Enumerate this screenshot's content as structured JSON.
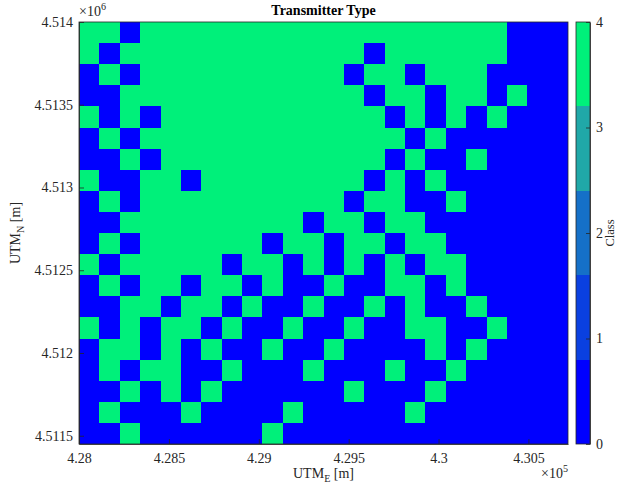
{
  "chart_data": {
    "type": "heatmap",
    "title": "Transmitter Type",
    "xlabel": {
      "base": "UTM",
      "sub": "E",
      "unit": " [m]"
    },
    "ylabel": {
      "base": "UTM",
      "sub": "N",
      "unit": " [m]"
    },
    "x_exponent": {
      "base": "×10",
      "sup": "5"
    },
    "y_exponent": {
      "base": "×10",
      "sup": "6"
    },
    "xlim": [
      4.28,
      4.3072
    ],
    "ylim": [
      4.51145,
      4.514
    ],
    "xticks": [
      4.28,
      4.285,
      4.29,
      4.295,
      4.3,
      4.305
    ],
    "yticks": [
      4.5115,
      4.512,
      4.5125,
      4.513,
      4.5135,
      4.514
    ],
    "colorbar": {
      "label": "Class",
      "range": [
        0,
        4
      ],
      "ticks": [
        0,
        1,
        2,
        3,
        4
      ],
      "colors": [
        "#0000ff",
        "#0a40e0",
        "#1570c8",
        "#20a8a8",
        "#00f07a"
      ]
    },
    "cells": [
      [
        4,
        4,
        0,
        4,
        4,
        4,
        4,
        4,
        4,
        4,
        4,
        4,
        4,
        4,
        4,
        4,
        4,
        4,
        4,
        4,
        4,
        0,
        0,
        0
      ],
      [
        4,
        0,
        4,
        4,
        4,
        4,
        4,
        4,
        4,
        4,
        4,
        4,
        4,
        4,
        0,
        4,
        4,
        4,
        4,
        4,
        4,
        0,
        0,
        0
      ],
      [
        0,
        4,
        0,
        4,
        4,
        4,
        4,
        4,
        4,
        4,
        4,
        4,
        4,
        0,
        4,
        4,
        0,
        4,
        4,
        4,
        0,
        0,
        0,
        0
      ],
      [
        0,
        0,
        4,
        4,
        4,
        4,
        4,
        4,
        4,
        4,
        4,
        4,
        4,
        4,
        0,
        4,
        4,
        0,
        4,
        4,
        0,
        4,
        0,
        0
      ],
      [
        4,
        0,
        4,
        0,
        4,
        4,
        4,
        4,
        4,
        4,
        4,
        4,
        4,
        4,
        4,
        0,
        4,
        0,
        4,
        0,
        4,
        0,
        0,
        0
      ],
      [
        0,
        4,
        0,
        4,
        4,
        4,
        4,
        4,
        4,
        4,
        4,
        4,
        4,
        4,
        4,
        4,
        0,
        4,
        0,
        0,
        0,
        0,
        0,
        0
      ],
      [
        0,
        0,
        4,
        0,
        4,
        4,
        4,
        4,
        4,
        4,
        4,
        4,
        4,
        4,
        4,
        0,
        4,
        0,
        0,
        4,
        0,
        0,
        0,
        0
      ],
      [
        4,
        0,
        0,
        4,
        4,
        0,
        4,
        4,
        4,
        4,
        4,
        4,
        4,
        4,
        0,
        4,
        0,
        4,
        0,
        0,
        0,
        0,
        0,
        0
      ],
      [
        0,
        4,
        0,
        4,
        4,
        4,
        4,
        4,
        4,
        4,
        4,
        4,
        4,
        0,
        4,
        4,
        0,
        0,
        4,
        0,
        0,
        0,
        0,
        0
      ],
      [
        0,
        0,
        4,
        4,
        4,
        4,
        4,
        4,
        4,
        4,
        4,
        0,
        4,
        4,
        0,
        4,
        4,
        0,
        0,
        0,
        0,
        0,
        0,
        0
      ],
      [
        0,
        4,
        0,
        4,
        4,
        4,
        4,
        4,
        4,
        0,
        4,
        4,
        0,
        4,
        4,
        0,
        4,
        4,
        0,
        0,
        0,
        0,
        0,
        0
      ],
      [
        4,
        0,
        4,
        4,
        4,
        4,
        4,
        0,
        4,
        4,
        0,
        4,
        0,
        4,
        0,
        4,
        0,
        4,
        4,
        0,
        0,
        0,
        0,
        0
      ],
      [
        0,
        4,
        0,
        4,
        4,
        0,
        4,
        4,
        0,
        4,
        0,
        0,
        4,
        0,
        0,
        4,
        4,
        0,
        4,
        0,
        0,
        0,
        0,
        0
      ],
      [
        0,
        0,
        4,
        4,
        0,
        4,
        4,
        0,
        4,
        0,
        0,
        4,
        0,
        0,
        4,
        0,
        4,
        0,
        0,
        4,
        0,
        0,
        0,
        0
      ],
      [
        4,
        0,
        4,
        0,
        4,
        4,
        0,
        4,
        0,
        0,
        4,
        0,
        0,
        4,
        0,
        0,
        4,
        4,
        0,
        0,
        4,
        0,
        0,
        0
      ],
      [
        0,
        4,
        4,
        0,
        4,
        0,
        4,
        0,
        0,
        4,
        0,
        0,
        4,
        0,
        0,
        0,
        0,
        4,
        0,
        4,
        0,
        0,
        0,
        0
      ],
      [
        0,
        4,
        0,
        4,
        4,
        0,
        0,
        4,
        0,
        0,
        0,
        4,
        0,
        0,
        0,
        4,
        0,
        0,
        4,
        0,
        0,
        0,
        0,
        0
      ],
      [
        0,
        0,
        4,
        0,
        4,
        0,
        4,
        0,
        0,
        0,
        0,
        0,
        0,
        4,
        0,
        0,
        0,
        4,
        0,
        0,
        0,
        0,
        0,
        0
      ],
      [
        0,
        4,
        0,
        0,
        0,
        4,
        0,
        0,
        0,
        0,
        4,
        0,
        0,
        0,
        0,
        0,
        4,
        0,
        0,
        0,
        0,
        0,
        0,
        0
      ],
      [
        0,
        0,
        4,
        0,
        0,
        0,
        0,
        0,
        0,
        4,
        0,
        0,
        0,
        0,
        0,
        0,
        0,
        0,
        0,
        0,
        0,
        0,
        0,
        0
      ]
    ]
  }
}
